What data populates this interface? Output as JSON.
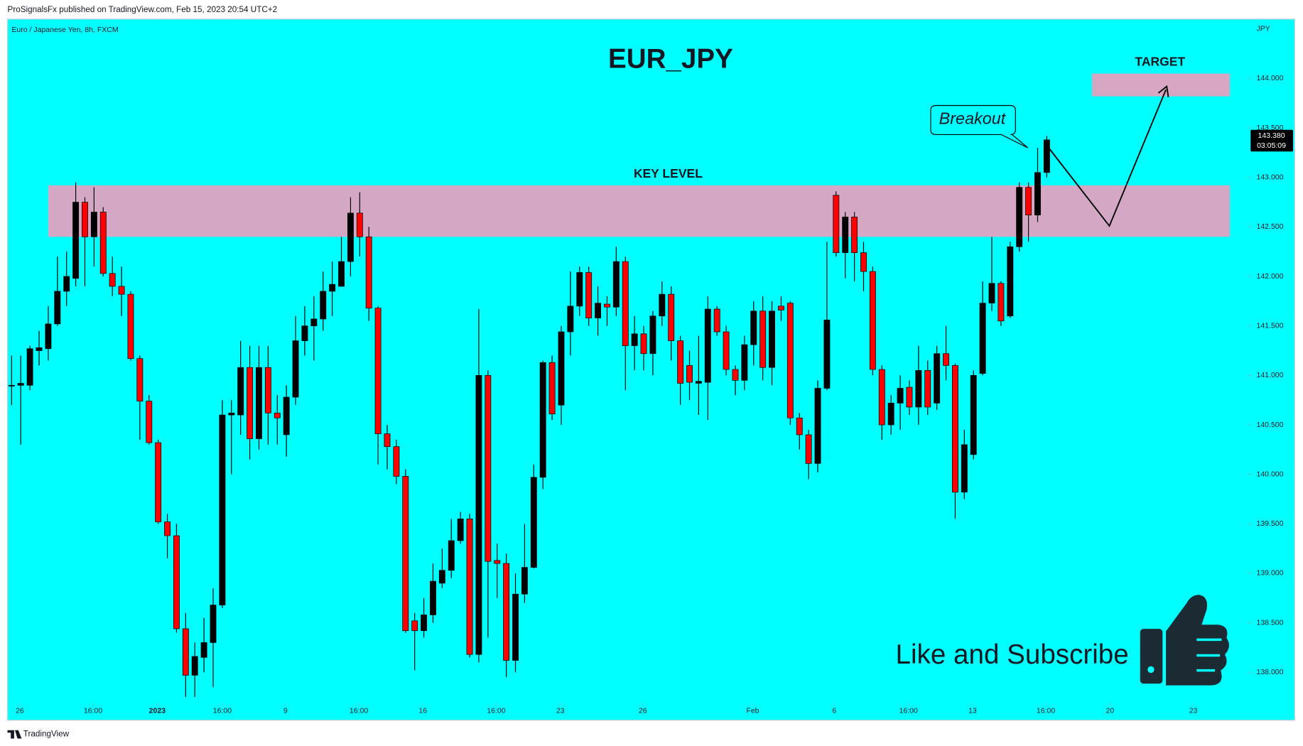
{
  "page_header": "ProSignalsFx published on TradingView.com, Feb 15, 2023 20:54 UTC+2",
  "page_footer": "TradingView",
  "chart_data": {
    "type": "candlestick",
    "title": "EUR_JPY",
    "symbol": "Euro / Japanese Yen, 8h, FXCM",
    "currency": "JPY",
    "up_color": "#000000",
    "down_color": "#ff0000",
    "categories": [
      null,
      null,
      null,
      null,
      null,
      null,
      null,
      null,
      null,
      null,
      null,
      null,
      null,
      null,
      null,
      null,
      null,
      null,
      null,
      null,
      null,
      null,
      null,
      null,
      null,
      null,
      null,
      null,
      null,
      null,
      null,
      null,
      null,
      null,
      null,
      null,
      null,
      null,
      null,
      null,
      null,
      null,
      null,
      null,
      null,
      null,
      null,
      null,
      null,
      null,
      null,
      null,
      null,
      null,
      null,
      null,
      null,
      null,
      null,
      null,
      null,
      null,
      null,
      null,
      null,
      null,
      null,
      null,
      null,
      null,
      null,
      null,
      null,
      null,
      null,
      null,
      null,
      null,
      null,
      null,
      null,
      null,
      null,
      null,
      null,
      null,
      null,
      null,
      null,
      null,
      null,
      null,
      null,
      null,
      null,
      null,
      null,
      null,
      null,
      null,
      null,
      null,
      null,
      null,
      null,
      null,
      null,
      null,
      null,
      null,
      null,
      null,
      null,
      null
    ],
    "open": [
      140.9,
      140.9,
      140.9,
      141.25,
      141.27,
      141.52,
      141.85,
      141.98,
      142.75,
      142.4,
      142.65,
      142.03,
      141.9,
      141.82,
      141.17,
      140.74,
      140.32,
      139.52,
      139.38,
      138.44,
      137.97,
      138.15,
      138.3,
      138.68,
      140.6,
      140.6,
      141.08,
      140.36,
      141.08,
      140.62,
      140.4,
      140.78,
      141.35,
      141.5,
      141.57,
      141.85,
      141.9,
      142.15,
      142.64,
      142.4,
      141.68,
      140.41,
      140.28,
      139.98,
      138.52,
      138.42,
      138.58,
      138.9,
      139.03,
      139.33,
      139.55,
      138.18,
      141.0,
      139.13,
      139.1,
      138.12,
      138.79,
      139.06,
      139.97,
      141.13,
      140.7,
      141.44,
      141.7,
      142.04,
      141.58,
      141.72,
      141.69,
      142.15,
      141.3,
      141.42,
      141.22,
      141.6,
      141.82,
      141.35,
      141.1,
      140.92,
      140.93,
      141.67,
      141.44,
      141.06,
      140.95,
      141.31,
      141.65,
      141.08,
      141.7,
      141.73,
      140.57,
      140.4,
      140.11,
      140.87,
      142.82,
      142.24,
      142.6,
      142.24,
      142.05,
      141.06,
      140.5,
      140.72,
      140.88,
      140.68,
      141.05,
      140.72,
      141.22,
      141.1,
      139.82,
      140.2,
      141.02,
      141.73,
      141.93,
      141.6,
      142.3,
      142.9,
      142.62,
      143.05
    ],
    "high": [
      141.2,
      141.2,
      141.3,
      141.45,
      141.7,
      142.2,
      142.25,
      142.95,
      142.8,
      142.9,
      142.7,
      142.2,
      142.1,
      141.85,
      141.2,
      140.8,
      140.35,
      139.6,
      139.5,
      138.6,
      138.3,
      138.55,
      138.85,
      140.75,
      140.75,
      141.35,
      141.3,
      141.3,
      141.3,
      140.8,
      140.9,
      141.6,
      141.7,
      141.8,
      142.05,
      142.15,
      142.4,
      142.8,
      142.85,
      142.5,
      141.7,
      140.5,
      140.35,
      140.05,
      138.6,
      138.75,
      139.1,
      139.25,
      139.55,
      139.62,
      139.6,
      141.67,
      141.05,
      139.3,
      139.2,
      139.0,
      139.5,
      140.1,
      141.15,
      141.2,
      141.5,
      142.05,
      142.1,
      142.1,
      141.9,
      141.8,
      142.3,
      142.2,
      141.6,
      141.5,
      141.65,
      141.95,
      141.9,
      141.4,
      141.25,
      141.4,
      141.8,
      141.7,
      141.5,
      141.1,
      141.4,
      141.75,
      141.8,
      141.75,
      141.8,
      141.75,
      140.62,
      140.45,
      140.95,
      142.35,
      142.86,
      142.65,
      142.65,
      142.35,
      142.1,
      141.1,
      140.8,
      141.0,
      140.95,
      141.3,
      141.15,
      141.3,
      141.5,
      141.12,
      140.45,
      141.05,
      141.95,
      142.4,
      141.95,
      142.35,
      142.95,
      142.95,
      143.3,
      143.42
    ],
    "low": [
      140.7,
      140.3,
      140.85,
      141.1,
      141.15,
      141.5,
      141.7,
      141.9,
      141.9,
      142.1,
      142.0,
      141.8,
      141.6,
      141.15,
      140.35,
      140.3,
      139.5,
      139.15,
      138.4,
      137.75,
      137.75,
      138.0,
      137.85,
      138.65,
      140.0,
      140.4,
      140.15,
      140.25,
      140.3,
      140.3,
      140.18,
      140.7,
      141.2,
      141.15,
      141.45,
      141.6,
      141.9,
      142.0,
      142.2,
      141.55,
      140.1,
      140.05,
      139.9,
      138.4,
      138.02,
      138.35,
      138.5,
      138.85,
      138.95,
      139.3,
      138.15,
      138.1,
      138.35,
      138.75,
      137.95,
      138.0,
      138.7,
      139.05,
      139.85,
      140.55,
      140.5,
      141.2,
      141.6,
      141.5,
      141.4,
      141.5,
      141.6,
      140.85,
      141.05,
      141.05,
      141.0,
      141.5,
      141.15,
      140.7,
      140.75,
      140.6,
      140.55,
      141.4,
      141.0,
      140.8,
      140.85,
      141.1,
      140.95,
      140.9,
      141.55,
      140.5,
      140.25,
      139.95,
      140.02,
      140.85,
      142.2,
      141.98,
      141.95,
      141.85,
      141.0,
      140.35,
      140.4,
      140.45,
      140.6,
      140.5,
      140.6,
      140.65,
      140.95,
      139.55,
      139.75,
      140.15,
      141.0,
      141.65,
      141.5,
      141.58,
      142.25,
      142.35,
      142.55,
      143.0
    ],
    "close": [
      140.9,
      140.92,
      141.27,
      141.28,
      141.52,
      141.85,
      142.0,
      142.75,
      142.4,
      142.65,
      142.03,
      141.9,
      141.82,
      141.17,
      140.74,
      140.32,
      139.52,
      139.38,
      138.44,
      137.97,
      138.16,
      138.3,
      138.68,
      140.6,
      140.62,
      141.08,
      140.36,
      141.08,
      140.62,
      140.57,
      140.78,
      141.35,
      141.5,
      141.57,
      141.85,
      141.92,
      142.15,
      142.64,
      142.4,
      141.68,
      140.41,
      140.28,
      139.98,
      138.42,
      138.42,
      138.58,
      138.92,
      139.03,
      139.33,
      139.55,
      138.18,
      141.0,
      139.12,
      139.1,
      138.12,
      138.79,
      139.06,
      139.97,
      141.13,
      140.61,
      141.44,
      141.7,
      142.04,
      141.58,
      141.73,
      141.69,
      142.15,
      141.3,
      141.42,
      141.22,
      141.6,
      141.82,
      141.35,
      140.92,
      140.93,
      140.94,
      141.67,
      141.44,
      141.06,
      140.95,
      141.31,
      141.65,
      141.08,
      141.65,
      141.66,
      140.57,
      140.4,
      140.11,
      140.87,
      141.56,
      142.24,
      142.6,
      142.24,
      142.05,
      141.06,
      140.5,
      140.72,
      140.87,
      140.68,
      141.05,
      140.68,
      141.22,
      141.1,
      139.82,
      140.3,
      141.0,
      141.73,
      141.93,
      141.55,
      142.3,
      142.9,
      142.62,
      143.05,
      143.38
    ],
    "xlim": [
      -0.45,
      134.8
    ],
    "ylim": [
      137.7,
      144.6
    ],
    "xticks": [
      {
        "value": 0.9,
        "label": "26"
      },
      {
        "value": 8.9,
        "label": "16:00"
      },
      {
        "value": 15.9,
        "label": "2023"
      },
      {
        "value": 23.0,
        "label": "16:00"
      },
      {
        "value": 29.9,
        "label": "9"
      },
      {
        "value": 37.9,
        "label": "16:00"
      },
      {
        "value": 44.9,
        "label": "16"
      },
      {
        "value": 52.9,
        "label": "16:00"
      },
      {
        "value": 59.9,
        "label": "23"
      },
      {
        "value": 68.9,
        "label": "26"
      },
      {
        "value": 80.9,
        "label": "Feb"
      },
      {
        "value": 89.8,
        "label": "6"
      },
      {
        "value": 97.9,
        "label": "16:00"
      },
      {
        "value": 104.9,
        "label": "13"
      },
      {
        "value": 112.9,
        "label": "16:00"
      },
      {
        "value": 119.9,
        "label": "20"
      },
      {
        "value": 129.0,
        "label": "23"
      }
    ],
    "yticks": [
      {
        "value": 138,
        "label": "138.000"
      },
      {
        "value": 138.5,
        "label": "138.500"
      },
      {
        "value": 139,
        "label": "139.000"
      },
      {
        "value": 139.5,
        "label": "139.500"
      },
      {
        "value": 140,
        "label": "140.000"
      },
      {
        "value": 140.5,
        "label": "140.500"
      },
      {
        "value": 141,
        "label": "141.000"
      },
      {
        "value": 141.5,
        "label": "141.500"
      },
      {
        "value": 142,
        "label": "142.000"
      },
      {
        "value": 142.5,
        "label": "142.500"
      },
      {
        "value": 143,
        "label": "143.000"
      },
      {
        "value": 143.5,
        "label": "143.500"
      },
      {
        "value": 144,
        "label": "144.000"
      }
    ],
    "grid": false,
    "last_price": {
      "value": 143.38,
      "label": "143.380",
      "countdown": "03:05:09"
    },
    "zones": [
      {
        "label": "KEY LEVEL",
        "range": [
          142.4,
          142.92
        ],
        "color": "#d4a8c4"
      },
      {
        "label": "TARGET",
        "range": [
          143.82,
          144.05
        ],
        "color": "#d6a6c2"
      }
    ],
    "annotations": [
      "Breakout",
      "Like and Subscribe"
    ]
  }
}
